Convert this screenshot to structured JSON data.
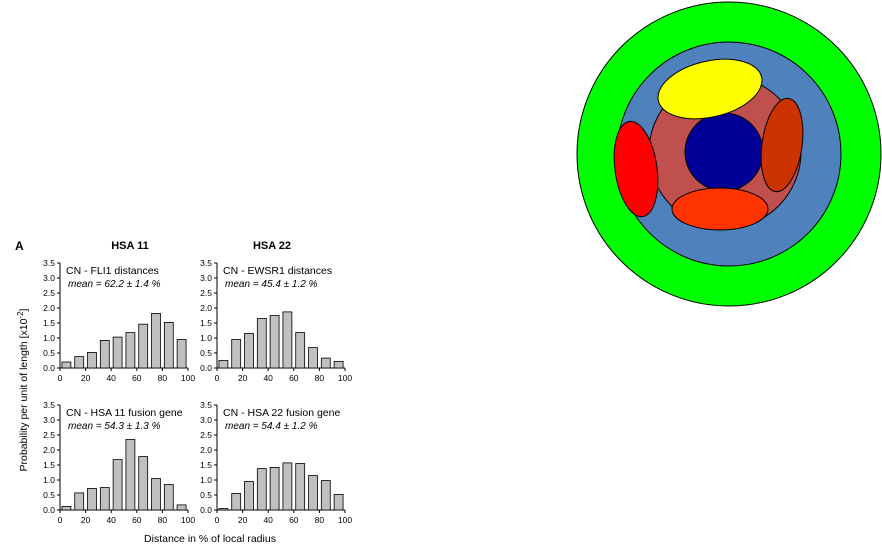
{
  "figure": {
    "panel_label": "A",
    "xlabel": "Distance in % of local radius",
    "ylabel_base": "Probability per unit of length [x10",
    "ylabel_exp": "-2",
    "ylabel_close": "]"
  },
  "columns": [
    "HSA 11",
    "HSA 22"
  ],
  "chart_data": [
    {
      "type": "bar",
      "title": "CN - FLI1 distances",
      "mean_label": "mean = 62.2 ± 1.4 %",
      "x": [
        5,
        15,
        25,
        35,
        45,
        55,
        65,
        75,
        85,
        95
      ],
      "values": [
        0.2,
        0.38,
        0.52,
        0.92,
        1.03,
        1.18,
        1.46,
        1.82,
        1.52,
        0.95
      ],
      "xlim": [
        0,
        100
      ],
      "ylim": [
        0,
        3.5
      ],
      "xticks": [
        "0",
        "20",
        "40",
        "60",
        "80",
        "100"
      ],
      "yticks": [
        "0.0",
        "0.5",
        "1.0",
        "1.5",
        "2.0",
        "2.5",
        "3.0",
        "3.5"
      ]
    },
    {
      "type": "bar",
      "title": "CN - EWSR1 distances",
      "mean_label": "mean = 45.4 ± 1.2 %",
      "x": [
        5,
        15,
        25,
        35,
        45,
        55,
        65,
        75,
        85,
        95
      ],
      "values": [
        0.25,
        0.95,
        1.15,
        1.65,
        1.75,
        1.87,
        1.18,
        0.68,
        0.33,
        0.22
      ],
      "xlim": [
        0,
        100
      ],
      "ylim": [
        0,
        3.5
      ],
      "xticks": [
        "0",
        "20",
        "40",
        "60",
        "80",
        "100"
      ],
      "yticks": [
        "0.0",
        "0.5",
        "1.0",
        "1.5",
        "2.0",
        "2.5",
        "3.0",
        "3.5"
      ]
    },
    {
      "type": "bar",
      "title": "CN - HSA 11 fusion gene",
      "mean_label": "mean = 54.3 ± 1.3 %",
      "x": [
        5,
        15,
        25,
        35,
        45,
        55,
        65,
        75,
        85,
        95
      ],
      "values": [
        0.12,
        0.57,
        0.72,
        0.75,
        1.68,
        2.35,
        1.78,
        1.05,
        0.85,
        0.17
      ],
      "xlim": [
        0,
        100
      ],
      "ylim": [
        0,
        3.5
      ],
      "xticks": [
        "0",
        "20",
        "40",
        "60",
        "80",
        "100"
      ],
      "yticks": [
        "0.0",
        "0.5",
        "1.0",
        "1.5",
        "2.0",
        "2.5",
        "3.0",
        "3.5"
      ]
    },
    {
      "type": "bar",
      "title": "CN - HSA 22 fusion gene",
      "mean_label": "mean = 54.4 ± 1.2 %",
      "x": [
        5,
        15,
        25,
        35,
        45,
        55,
        65,
        75,
        85,
        95
      ],
      "values": [
        0.05,
        0.55,
        0.95,
        1.38,
        1.42,
        1.57,
        1.55,
        1.15,
        0.98,
        0.52
      ],
      "xlim": [
        0,
        100
      ],
      "ylim": [
        0,
        3.5
      ],
      "xticks": [
        "0",
        "20",
        "40",
        "60",
        "80",
        "100"
      ],
      "yticks": [
        "0.0",
        "0.5",
        "1.0",
        "1.5",
        "2.0",
        "2.5",
        "3.0",
        "3.5"
      ]
    }
  ],
  "diagram": {
    "colors": {
      "outer_ring": "#00ff00",
      "middle_ring": "#4f81bd",
      "inner_zone": "#c0504d",
      "core": "#000099",
      "top_ellipse": "#ffff00",
      "left_ellipse": "#ff0000",
      "right_ellipse": "#cc3300",
      "bottom_ellipse": "#ff3300",
      "outline": "#000000"
    }
  },
  "style": {
    "bar_fill": "#c0c0c0",
    "bar_stroke": "#000000"
  }
}
